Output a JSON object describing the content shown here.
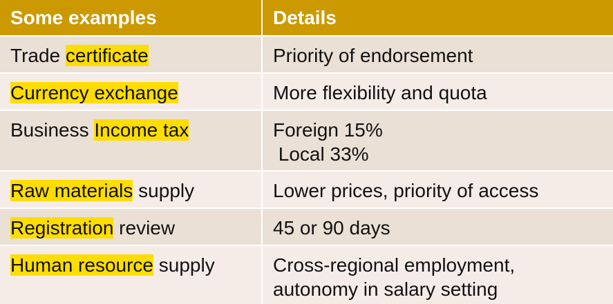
{
  "header": {
    "col1": "Some examples",
    "col2": "Details"
  },
  "rows": [
    {
      "example": [
        {
          "text": "Trade "
        },
        {
          "text": "certificate",
          "highlight": true
        }
      ],
      "details": [
        "Priority of endorsement"
      ]
    },
    {
      "example": [
        {
          "text": "Currency exchange",
          "highlight": true
        }
      ],
      "details": [
        "More flexibility and quota"
      ]
    },
    {
      "example": [
        {
          "text": "Business "
        },
        {
          "text": "Income tax",
          "highlight": true
        }
      ],
      "details": [
        "Foreign 15%",
        " Local 33%"
      ]
    },
    {
      "example": [
        {
          "text": "Raw materials",
          "highlight": true
        },
        {
          "text": " supply"
        }
      ],
      "details": [
        "Lower prices, priority of access"
      ]
    },
    {
      "example": [
        {
          "text": "Registration",
          "highlight": true
        },
        {
          "text": " review"
        }
      ],
      "details": [
        "45 or 90 days"
      ]
    },
    {
      "example": [
        {
          "text": "Human resource",
          "highlight": true
        },
        {
          "text": " supply"
        }
      ],
      "details": [
        "Cross-regional employment,",
        "autonomy in salary setting"
      ]
    }
  ],
  "colors": {
    "header_bg": "#cc9900",
    "highlight": "#ffdd00",
    "row_odd": "#eae0d6",
    "row_even": "#f5ece8"
  }
}
